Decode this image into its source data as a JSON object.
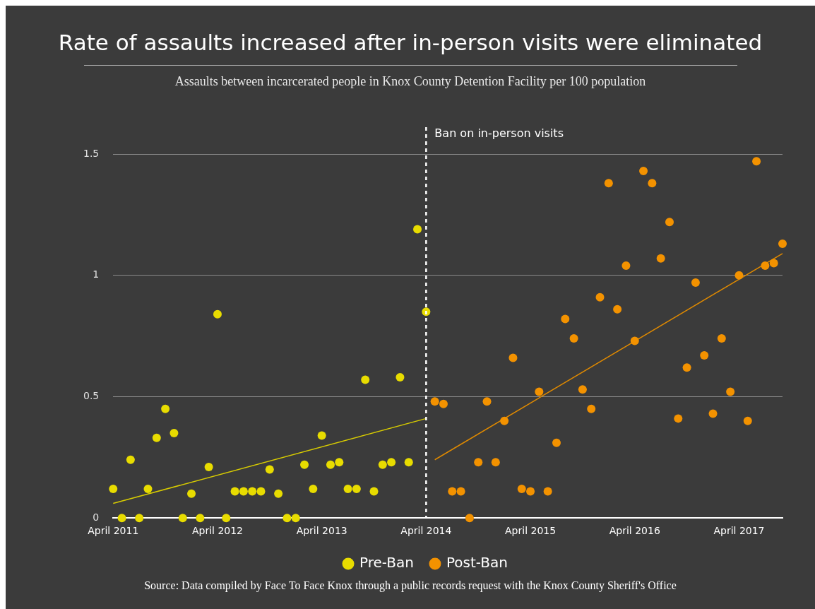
{
  "chart_data": {
    "type": "scatter",
    "title": "Rate of assaults increased after in-person visits were eliminated",
    "subtitle": "Assaults between incarcerated people in Knox County Detention Facility per 100 population",
    "categories": [
      "April 2011",
      null,
      null,
      null,
      null,
      null,
      null,
      null,
      null,
      null,
      null,
      null,
      "April 2012",
      null,
      null,
      null,
      null,
      null,
      null,
      null,
      null,
      null,
      null,
      null,
      "April 2013",
      null,
      null,
      null,
      null,
      null,
      null,
      null,
      null,
      null,
      null,
      null,
      "April 2014",
      null,
      null,
      null,
      null,
      null,
      null,
      null,
      null,
      null,
      null,
      null,
      "April 2015",
      null,
      null,
      null,
      null,
      null,
      null,
      null,
      null,
      null,
      null,
      null,
      "April 2016",
      null,
      null,
      null,
      null,
      null,
      null,
      null,
      null,
      null,
      null,
      null,
      "April 2017",
      null,
      null,
      null,
      null,
      null
    ],
    "series": [
      {
        "name": "Pre-Ban",
        "color": "#e8dc00",
        "values": [
          0.12,
          0,
          0.24,
          0,
          0.12,
          0.33,
          0.45,
          0.35,
          0,
          0.1,
          0,
          0.21,
          0.84,
          0,
          0.11,
          0.11,
          0.11,
          0.11,
          0.2,
          0.1,
          0,
          0,
          0.22,
          0.12,
          0.34,
          0.22,
          0.23,
          0.12,
          0.12,
          0.57,
          0.11,
          0.22,
          0.23,
          0.58,
          0.23,
          1.19,
          0.85,
          null,
          null,
          null,
          null,
          null,
          null,
          null,
          null,
          null,
          null,
          null,
          null,
          null,
          null,
          null,
          null,
          null,
          null,
          null,
          null,
          null,
          null,
          null,
          null,
          null,
          null,
          null,
          null,
          null,
          null,
          null,
          null,
          null,
          null,
          null,
          null,
          null,
          null,
          null,
          null,
          null
        ]
      },
      {
        "name": "Post-Ban",
        "color": "#f39200",
        "values": [
          null,
          null,
          null,
          null,
          null,
          null,
          null,
          null,
          null,
          null,
          null,
          null,
          null,
          null,
          null,
          null,
          null,
          null,
          null,
          null,
          null,
          null,
          null,
          null,
          null,
          null,
          null,
          null,
          null,
          null,
          null,
          null,
          null,
          null,
          null,
          null,
          null,
          0.48,
          0.47,
          0.11,
          0.11,
          0,
          0.23,
          0.48,
          0.23,
          0.4,
          0.66,
          0.12,
          0.11,
          0.52,
          0.11,
          0.31,
          0.82,
          0.74,
          0.53,
          0.45,
          0.91,
          1.38,
          0.86,
          1.04,
          0.73,
          1.43,
          1.38,
          1.07,
          1.22,
          0.41,
          0.62,
          0.97,
          0.67,
          0.43,
          0.74,
          0.52,
          1.0,
          0.4,
          1.47,
          1.04,
          1.05,
          1.13
        ]
      },
      {
        "type": "line",
        "color": "#d8cc00",
        "marker": "none",
        "values": [
          0.06,
          null,
          null,
          null,
          null,
          null,
          null,
          null,
          null,
          null,
          null,
          null,
          null,
          null,
          null,
          null,
          null,
          null,
          null,
          null,
          null,
          null,
          null,
          null,
          null,
          null,
          null,
          null,
          null,
          null,
          null,
          null,
          null,
          null,
          null,
          null,
          0.41,
          null,
          null,
          null,
          null,
          null,
          null,
          null,
          null,
          null,
          null,
          null,
          null,
          null,
          null,
          null,
          null,
          null,
          null,
          null,
          null,
          null,
          null,
          null,
          null,
          null,
          null,
          null,
          null,
          null,
          null,
          null,
          null,
          null,
          null,
          null,
          null,
          null,
          null,
          null,
          null,
          null
        ]
      },
      {
        "type": "line",
        "color": "#e08a00",
        "marker": "none",
        "values": [
          null,
          null,
          null,
          null,
          null,
          null,
          null,
          null,
          null,
          null,
          null,
          null,
          null,
          null,
          null,
          null,
          null,
          null,
          null,
          null,
          null,
          null,
          null,
          null,
          null,
          null,
          null,
          null,
          null,
          null,
          null,
          null,
          null,
          null,
          null,
          null,
          null,
          0.24,
          null,
          null,
          null,
          null,
          null,
          null,
          null,
          null,
          null,
          null,
          null,
          null,
          null,
          null,
          null,
          null,
          null,
          null,
          null,
          null,
          null,
          null,
          null,
          null,
          null,
          null,
          null,
          null,
          null,
          null,
          null,
          null,
          null,
          null,
          null,
          null,
          null,
          null,
          null,
          1.09
        ]
      }
    ],
    "ylim": [
      0,
      1.5
    ],
    "yticks": [
      0,
      0.5,
      1,
      1.5
    ],
    "grid": "y",
    "legend": "bottom",
    "marker": "circle",
    "ref_lines": [
      {
        "axis": "x",
        "value": "April 2014",
        "label": "Ban on in-person visits",
        "color": "#ffffff",
        "line_style": "dashed"
      }
    ],
    "annotations": [
      "Source: Data compiled by Face To Face Knox through a public records request with the Knox County Sheriff's Office"
    ]
  }
}
